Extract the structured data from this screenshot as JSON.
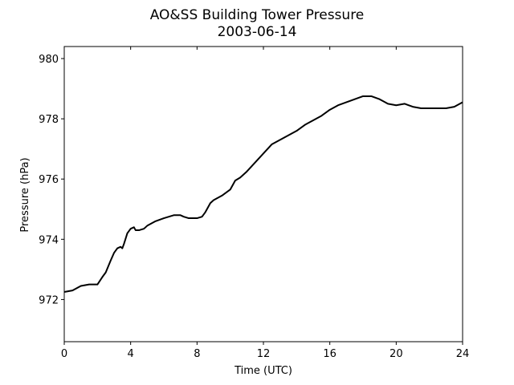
{
  "chart_data": {
    "type": "line",
    "title": "AO&SS Building Tower Pressure",
    "subtitle": "2003-06-14",
    "xlabel": "Time (UTC)",
    "ylabel": "Pressure (hPa)",
    "xlim": [
      0,
      24
    ],
    "ylim": [
      970.6,
      980.4
    ],
    "xticks": [
      0,
      4,
      8,
      12,
      16,
      20,
      24
    ],
    "xtick_labels": [
      "0",
      "4",
      "8",
      "12",
      "16",
      "20",
      "24"
    ],
    "yticks": [
      972,
      974,
      976,
      978,
      980
    ],
    "ytick_labels": [
      "972",
      "974",
      "976",
      "978",
      "980"
    ],
    "grid": false,
    "line_color": "#000000",
    "series": [
      {
        "x": [
          0,
          0.5,
          1,
          1.5,
          2,
          2.3,
          2.5,
          2.8,
          3,
          3.2,
          3.4,
          3.5,
          3.6,
          3.8,
          4,
          4.2,
          4.3,
          4.5,
          4.8,
          5,
          5.5,
          6,
          6.3,
          6.6,
          7,
          7.2,
          7.5,
          8,
          8.3,
          8.5,
          8.8,
          9,
          9.5,
          10,
          10.3,
          10.6,
          11,
          11.5,
          12,
          12.5,
          13,
          13.5,
          14,
          14.5,
          15,
          15.5,
          16,
          16.5,
          17,
          17.5,
          18,
          18.5,
          19,
          19.5,
          20,
          20.5,
          21,
          21.5,
          22,
          22.5,
          23,
          23.5,
          24
        ],
        "y": [
          972.25,
          972.3,
          972.45,
          972.5,
          972.5,
          972.75,
          972.9,
          973.3,
          973.55,
          973.7,
          973.75,
          973.7,
          973.85,
          974.2,
          974.35,
          974.4,
          974.3,
          974.3,
          974.35,
          974.45,
          974.6,
          974.7,
          974.75,
          974.8,
          974.8,
          974.75,
          974.7,
          974.7,
          974.75,
          974.9,
          975.2,
          975.3,
          975.45,
          975.65,
          975.95,
          976.05,
          976.25,
          976.55,
          976.85,
          977.15,
          977.3,
          977.45,
          977.6,
          977.8,
          977.95,
          978.1,
          978.3,
          978.45,
          978.55,
          978.65,
          978.75,
          978.75,
          978.65,
          978.5,
          978.45,
          978.5,
          978.4,
          978.35,
          978.35,
          978.35,
          978.35,
          978.4,
          978.55
        ]
      }
    ]
  }
}
